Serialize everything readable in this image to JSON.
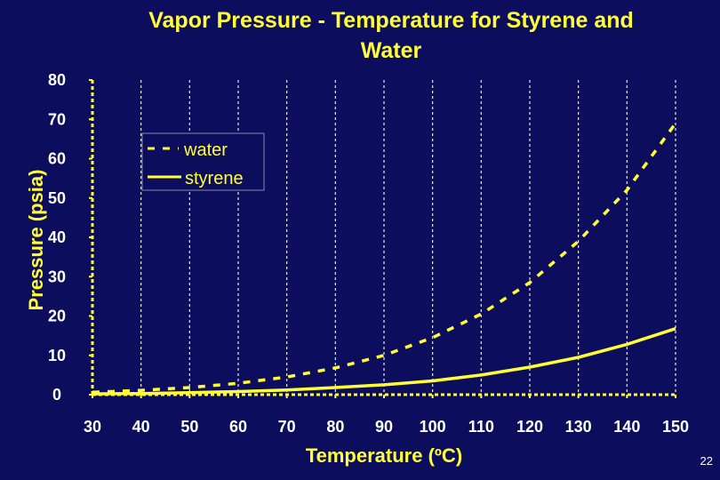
{
  "title_line1": "Vapor Pressure - Temperature for Styrene and",
  "title_line2": "Water",
  "slide_number": "22",
  "colors": {
    "background": "#0d0d5e",
    "foreground": "#ffff33",
    "gridline": "#ffffff"
  },
  "chart_data": {
    "type": "line",
    "xlabel": "Temperature (ºC)",
    "ylabel": "Pressure (psia)",
    "xlim": [
      30,
      150
    ],
    "ylim": [
      0,
      80
    ],
    "xticks": [
      30,
      40,
      50,
      60,
      70,
      80,
      90,
      100,
      110,
      120,
      130,
      140,
      150
    ],
    "yticks": [
      0,
      10,
      20,
      30,
      40,
      50,
      60,
      70,
      80
    ],
    "grid": "vertical",
    "legend_position": "top-left",
    "series": [
      {
        "name": "water",
        "style": "dashed",
        "x": [
          30,
          40,
          50,
          60,
          70,
          80,
          90,
          100,
          110,
          120,
          130,
          140,
          150
        ],
        "y": [
          0.6,
          1.1,
          1.8,
          2.9,
          4.5,
          6.8,
          10.0,
          14.5,
          20.5,
          28.5,
          39.0,
          52.0,
          69.0
        ]
      },
      {
        "name": "styrene",
        "style": "solid",
        "x": [
          30,
          40,
          50,
          60,
          70,
          80,
          90,
          100,
          110,
          120,
          130,
          140,
          150
        ],
        "y": [
          0.2,
          0.3,
          0.5,
          0.8,
          1.2,
          1.8,
          2.5,
          3.5,
          5.0,
          7.0,
          9.5,
          12.8,
          16.8
        ]
      }
    ]
  }
}
